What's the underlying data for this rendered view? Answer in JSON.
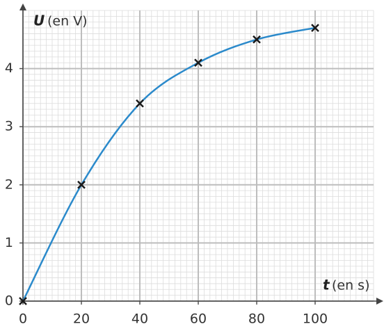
{
  "chart_data": {
    "type": "scatter",
    "ylabel": {
      "symbol": "U",
      "unit": "(en V)"
    },
    "xlabel": {
      "symbol": "t",
      "unit": "(en s)"
    },
    "x": [
      0,
      20,
      40,
      60,
      80,
      100
    ],
    "series": [
      {
        "values": [
          0,
          2,
          3.4,
          4.1,
          4.5,
          4.7
        ],
        "color": "#2b8acb",
        "marker_color": "#1a1a1a"
      }
    ],
    "xlim": [
      0,
      120
    ],
    "ylim": [
      0,
      5
    ],
    "xticks": [
      0,
      20,
      40,
      60,
      80,
      100
    ],
    "yticks": [
      0,
      1,
      2,
      3,
      4
    ],
    "grid": true,
    "minor_grid": {
      "x": 2,
      "y": 0.1
    }
  }
}
